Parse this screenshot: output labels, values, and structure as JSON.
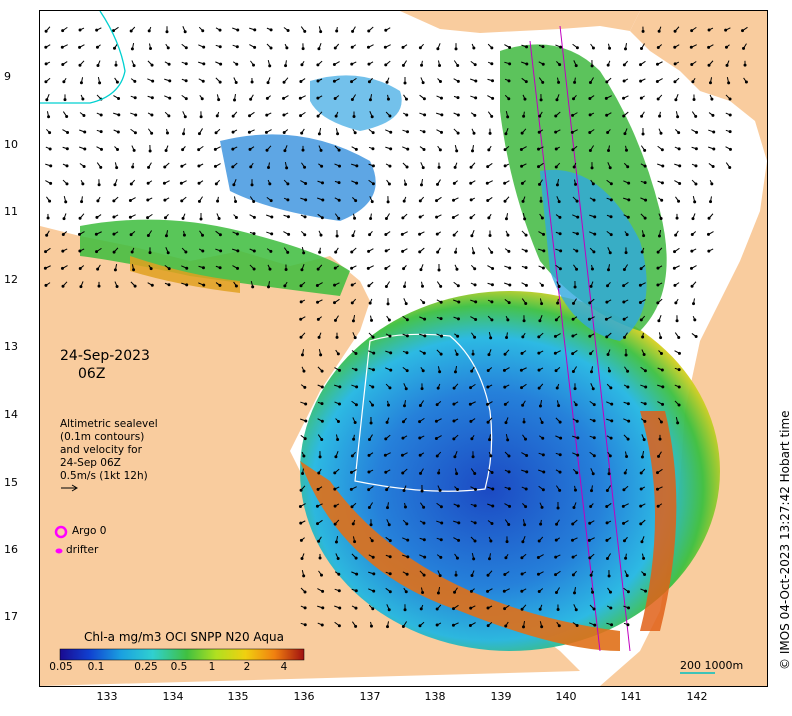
{
  "map": {
    "latitude_labels": [
      "9",
      "10",
      "11",
      "12",
      "13",
      "14",
      "15",
      "16",
      "17"
    ],
    "longitude_labels": [
      "133",
      "134",
      "135",
      "136",
      "137",
      "138",
      "139",
      "140",
      "141",
      "142"
    ],
    "date": "24-Sep-2023",
    "time": "06Z",
    "altimetry_lines": [
      "Altimetric sealevel",
      "(0.1m contours)",
      "and velocity for",
      "24-Sep 06Z",
      "0.5m/s (1kt 12h)"
    ],
    "legend": {
      "argo_label": "Argo 0",
      "drifter_label": "drifter",
      "argo_color": "#ff00ff",
      "drifter_color": "#ff00ff"
    },
    "colorbar": {
      "title": "Chl-a mg/m3 OCI SNPP N20 Aqua",
      "ticks": [
        "0.05",
        "0.1",
        "0.25",
        "0.5",
        "1",
        "2",
        "4"
      ]
    },
    "scale_bar": "200 1000m",
    "credit": "© IMOS 04-Oct-2023 13:27:42 Hobart time",
    "colors": {
      "land": "#f9cc9e",
      "water_open": "#ffffff",
      "chl_low": "#1038b8",
      "chl_mid": "#20b0e0",
      "chl_high": "#40c020",
      "chl_very_high": "#e04010",
      "contour": "#ffffff",
      "track": "#c000c0"
    }
  }
}
